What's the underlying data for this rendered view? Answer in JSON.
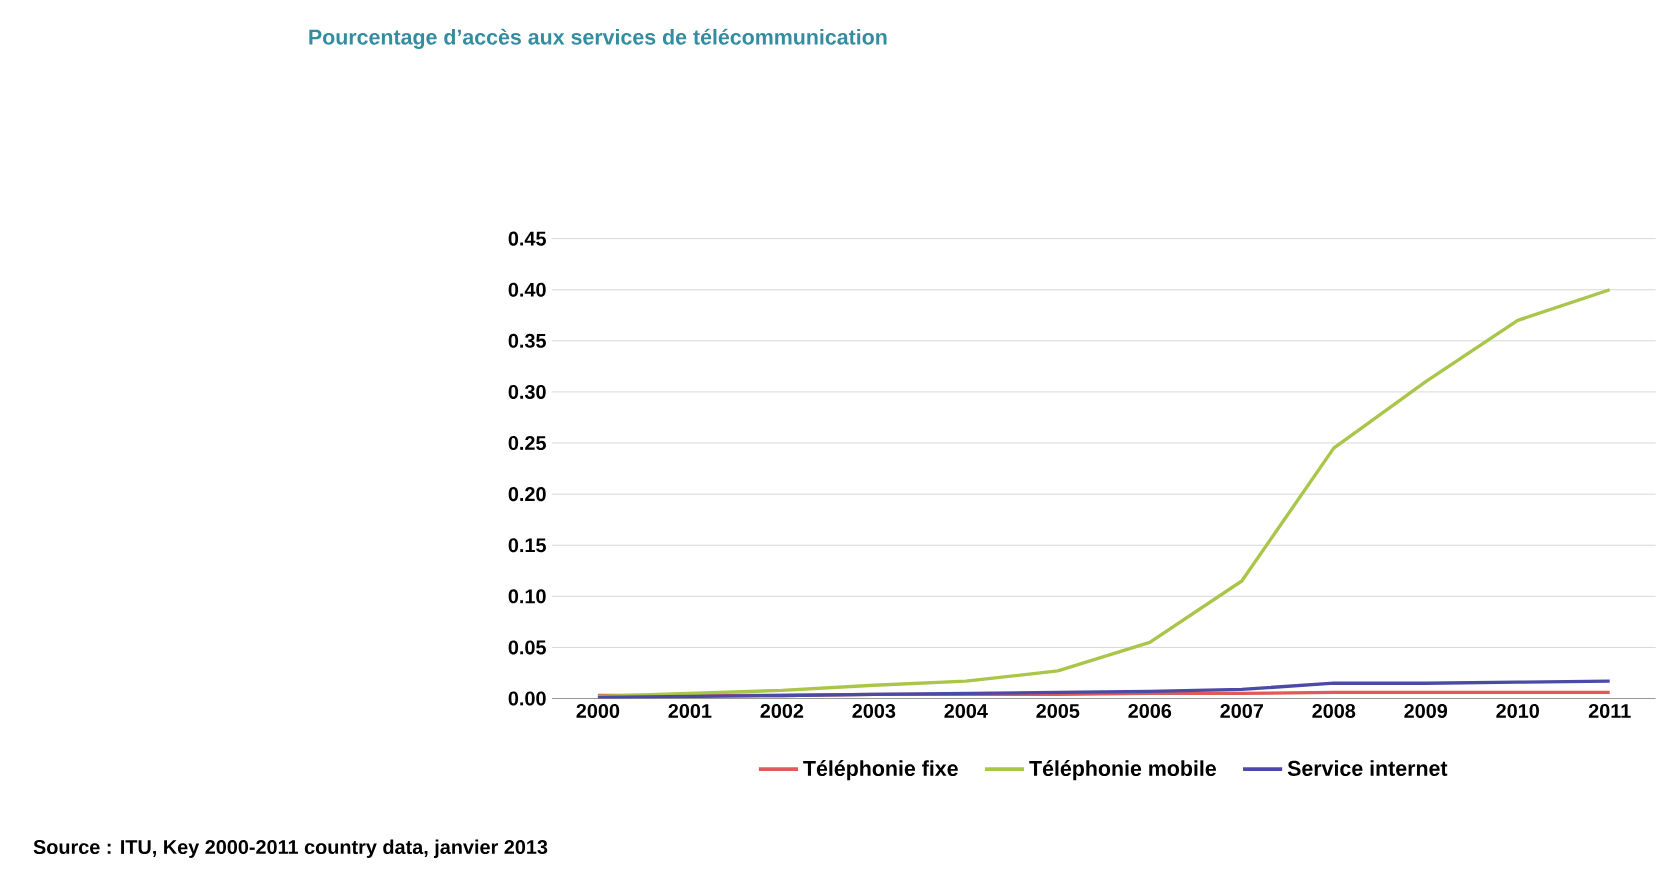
{
  "chart_data": {
    "type": "line",
    "title": "Pourcentage d’accès aux services de télécommunication",
    "categories": [
      "2000",
      "2001",
      "2002",
      "2003",
      "2004",
      "2005",
      "2006",
      "2007",
      "2008",
      "2009",
      "2010",
      "2011"
    ],
    "series": [
      {
        "name": "Téléphonie fixe",
        "color": "#e05a5a",
        "values": [
          0.003,
          0.003,
          0.003,
          0.004,
          0.004,
          0.004,
          0.005,
          0.005,
          0.006,
          0.006,
          0.006,
          0.006
        ]
      },
      {
        "name": "Téléphonie mobile",
        "color": "#a9c64a",
        "values": [
          0.002,
          0.005,
          0.008,
          0.013,
          0.017,
          0.027,
          0.055,
          0.115,
          0.245,
          0.31,
          0.37,
          0.4
        ]
      },
      {
        "name": "Service internet",
        "color": "#4b4ba6",
        "values": [
          0.001,
          0.002,
          0.003,
          0.004,
          0.005,
          0.006,
          0.007,
          0.009,
          0.015,
          0.015,
          0.016,
          0.017
        ]
      }
    ],
    "ylim": [
      0,
      0.45
    ],
    "yticks": [
      {
        "value": 0,
        "label": "0.00"
      },
      {
        "value": 0.05,
        "label": "0.05"
      },
      {
        "value": 0.1,
        "label": "0.10"
      },
      {
        "value": 0.15,
        "label": "0.15"
      },
      {
        "value": 0.2,
        "label": "0.20"
      },
      {
        "value": 0.25,
        "label": "0.25"
      },
      {
        "value": 0.3,
        "label": "0.30"
      },
      {
        "value": 0.35,
        "label": "0.35"
      },
      {
        "value": 0.4,
        "label": "0.40"
      },
      {
        "value": 0.45,
        "label": "0.45"
      }
    ],
    "grid": "y",
    "legend": "bottom",
    "marker": "none",
    "line_style": "solid",
    "annotations": [
      "Source : ITU, Key 2000-2011 country data, janvier 2013"
    ]
  }
}
